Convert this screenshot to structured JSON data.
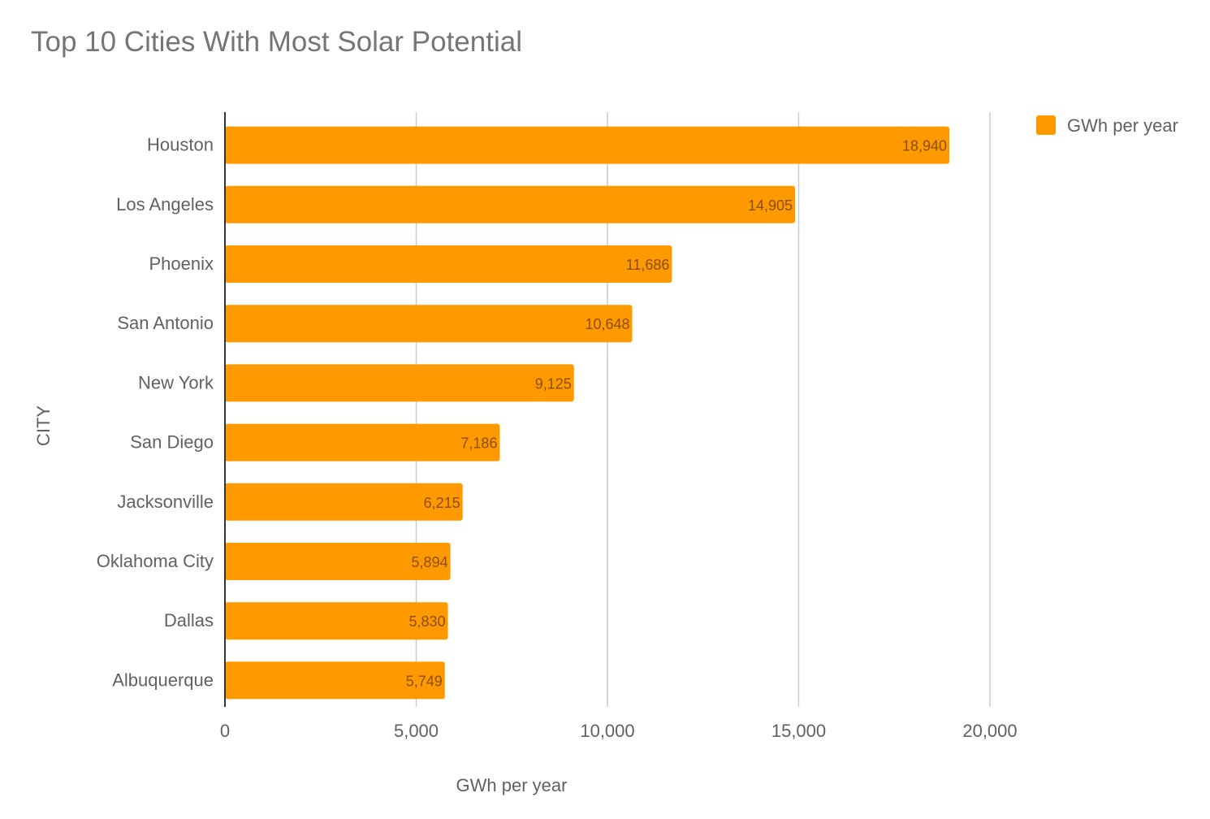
{
  "chart_data": {
    "type": "bar",
    "orientation": "horizontal",
    "title": "Top 10 Cities With Most Solar Potential",
    "xlabel": "GWh per year",
    "ylabel": "CITY",
    "xlim": [
      0,
      20000
    ],
    "x_ticks": [
      0,
      5000,
      10000,
      15000,
      20000
    ],
    "x_tick_labels": [
      "0",
      "5,000",
      "10,000",
      "15,000",
      "20,000"
    ],
    "grid": true,
    "legend": {
      "position": "top-right",
      "entries": [
        "GWh per year"
      ]
    },
    "categories": [
      "Houston",
      "Los Angeles",
      "Phoenix",
      "San Antonio",
      "New York",
      "San Diego",
      "Jacksonville",
      "Oklahoma City",
      "Dallas",
      "Albuquerque"
    ],
    "series": [
      {
        "name": "GWh per year",
        "color": "#ff9900",
        "values": [
          18940,
          14905,
          11686,
          10648,
          9125,
          7186,
          6215,
          5894,
          5830,
          5749
        ],
        "data_labels": [
          "18,940",
          "14,905",
          "11,686",
          "10,648",
          "9,125",
          "7,186",
          "6,215",
          "5,894",
          "5,830",
          "5,749"
        ]
      }
    ]
  }
}
